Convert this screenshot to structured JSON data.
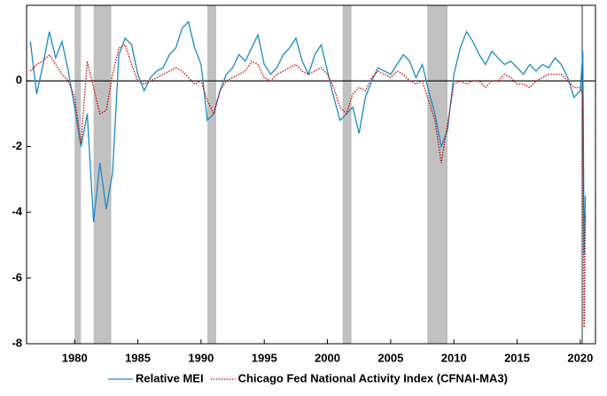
{
  "chart_data": {
    "type": "line",
    "x": [
      1976.5,
      1977,
      1977.5,
      1978,
      1978.5,
      1979,
      1979.5,
      1980,
      1980.5,
      1981,
      1981.5,
      1982,
      1982.5,
      1983,
      1983.5,
      1984,
      1984.5,
      1985,
      1985.5,
      1986,
      1986.5,
      1987,
      1987.5,
      1988,
      1988.5,
      1989,
      1989.5,
      1990,
      1990.5,
      1991,
      1991.5,
      1992,
      1992.5,
      1993,
      1993.5,
      1994,
      1994.5,
      1995,
      1995.5,
      1996,
      1996.5,
      1997,
      1997.5,
      1998,
      1998.5,
      1999,
      1999.5,
      2000,
      2000.5,
      2001,
      2001.5,
      2002,
      2002.5,
      2003,
      2003.5,
      2004,
      2004.5,
      2005,
      2005.5,
      2006,
      2006.5,
      2007,
      2007.5,
      2008,
      2008.5,
      2009,
      2009.5,
      2010,
      2010.5,
      2011,
      2011.5,
      2012,
      2012.5,
      2013,
      2013.5,
      2014,
      2014.5,
      2015,
      2015.5,
      2016,
      2016.5,
      2017,
      2017.5,
      2018,
      2018.5,
      2019,
      2019.5,
      2020,
      2020.2,
      2020.3,
      2020.4
    ],
    "series": [
      {
        "name": "Relative MEI",
        "color": "#1a8ac6",
        "style": "solid",
        "values": [
          1.2,
          -0.4,
          0.5,
          1.5,
          0.7,
          1.2,
          0.3,
          -0.8,
          -2.0,
          -1.0,
          -4.3,
          -2.5,
          -3.9,
          -2.8,
          0.8,
          1.3,
          1.1,
          0.2,
          -0.3,
          0.1,
          0.3,
          0.4,
          0.8,
          1.0,
          1.6,
          1.8,
          1.0,
          0.5,
          -1.2,
          -1.0,
          -0.3,
          0.2,
          0.4,
          0.8,
          0.6,
          1.0,
          1.4,
          0.5,
          0.2,
          0.4,
          0.8,
          1.0,
          1.3,
          0.6,
          0.2,
          0.8,
          1.1,
          0.3,
          -0.5,
          -1.2,
          -1.0,
          -0.8,
          -1.6,
          -0.5,
          0.0,
          0.4,
          0.3,
          0.2,
          0.5,
          0.8,
          0.6,
          0.1,
          0.5,
          -0.3,
          -1.0,
          -2.0,
          -1.5,
          0.2,
          1.0,
          1.5,
          1.2,
          0.8,
          0.5,
          0.9,
          0.7,
          0.5,
          0.6,
          0.4,
          0.2,
          0.5,
          0.3,
          0.5,
          0.4,
          0.7,
          0.5,
          0.1,
          -0.5,
          -0.3,
          0.9,
          -5.3,
          -3.5
        ]
      },
      {
        "name": "Chicago Fed National Activity Index (CFNAI-MA3)",
        "color": "#cc0000",
        "style": "dotted",
        "values": [
          0.3,
          0.5,
          0.6,
          0.8,
          0.5,
          0.2,
          0.0,
          -0.5,
          -1.9,
          0.6,
          -0.2,
          -1.0,
          -0.9,
          0.2,
          1.0,
          1.1,
          0.5,
          0.0,
          -0.1,
          0.0,
          0.1,
          0.2,
          0.3,
          0.4,
          0.3,
          0.1,
          -0.1,
          0.0,
          -0.6,
          -1.0,
          -0.3,
          0.0,
          0.1,
          0.2,
          0.3,
          0.6,
          0.5,
          0.1,
          0.0,
          0.2,
          0.3,
          0.4,
          0.5,
          0.3,
          0.2,
          0.3,
          0.4,
          0.2,
          -0.2,
          -0.8,
          -1.0,
          -0.4,
          -0.2,
          -0.3,
          0.1,
          0.3,
          0.2,
          0.1,
          0.3,
          0.2,
          0.0,
          -0.1,
          0.0,
          -0.6,
          -1.2,
          -2.5,
          -1.3,
          -0.1,
          0.0,
          -0.1,
          0.0,
          0.0,
          -0.2,
          0.0,
          0.0,
          0.2,
          0.1,
          -0.1,
          -0.1,
          -0.2,
          0.0,
          0.1,
          0.2,
          0.2,
          0.2,
          0.0,
          -0.2,
          -0.2,
          -0.5,
          -7.5,
          -4.0
        ]
      }
    ],
    "shaded_periods": [
      [
        1980.0,
        1980.5
      ],
      [
        1981.5,
        1982.9
      ],
      [
        1990.5,
        1991.2
      ],
      [
        2001.2,
        2001.9
      ],
      [
        2007.9,
        2009.5
      ]
    ],
    "shade_color": "#c0c0c0",
    "vline": 2020.15,
    "xlim": [
      1976.2,
      2021.2
    ],
    "xticks": [
      1980,
      1985,
      1990,
      1995,
      2000,
      2005,
      2010,
      2015,
      2020
    ],
    "ylim": [
      -8,
      2.3
    ],
    "yticks": [
      -8,
      -6,
      -4,
      -2,
      0
    ],
    "zero_line": true,
    "legend": "bottom"
  }
}
